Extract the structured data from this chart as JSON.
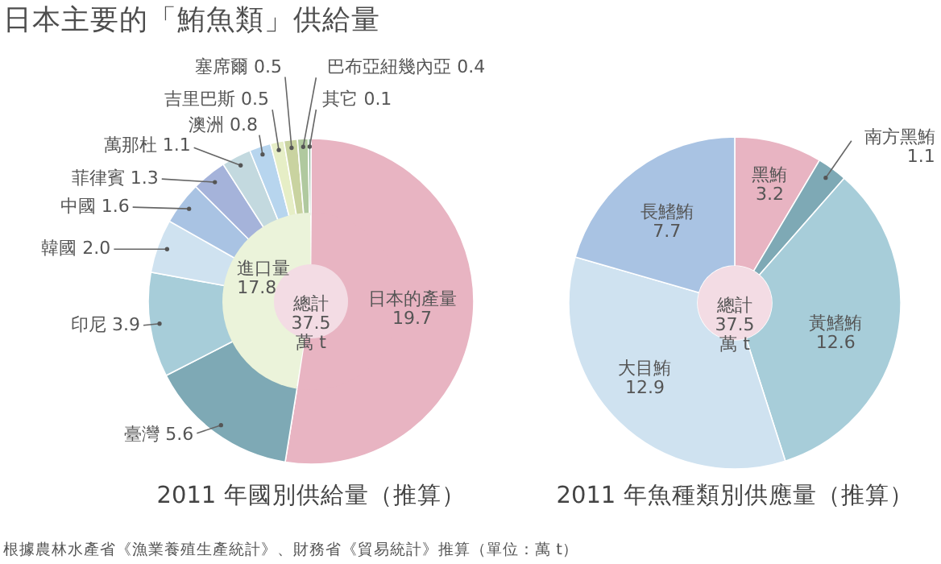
{
  "chart_data": [
    {
      "type": "pie",
      "title": "日本主要的「鮪魚類」供給量",
      "xlabel": "2011 年國別供給量（推算）",
      "categories": [
        "日本的產量",
        "臺灣",
        "印尼",
        "韓國",
        "中國",
        "菲律賓",
        "萬那杜",
        "澳洲",
        "吉里巴斯",
        "塞席爾",
        "巴布亞紐幾內亞",
        "其它",
        null
      ],
      "colors": [
        "#e8b4c2",
        "#7ea9b5",
        "#a7cdd9",
        "#cfe2f0",
        "#a9c3e3",
        "#a5b3da",
        "#c3d9df",
        "#b7d5ee",
        "#e6eec6",
        "#c9d3a0",
        "#b0c99f",
        "#8fb59c",
        "#ebf3da"
      ],
      "series": [
        {
          "values": [
            19.7,
            5.6,
            3.9,
            2.0,
            1.6,
            1.3,
            1.1,
            0.8,
            0.5,
            0.5,
            0.4,
            0.1,
            null
          ],
          "value_labels": [
            "19.7",
            "5.6",
            "3.9",
            "2.0",
            "1.6",
            "1.3",
            "1.1",
            "0.8",
            "0.5",
            "0.5",
            "0.4",
            "0.1",
            null
          ]
        },
        {
          "values": [
            19.7,
            null,
            null,
            null,
            null,
            null,
            null,
            null,
            null,
            null,
            null,
            null,
            17.8
          ],
          "value_labels": [
            null,
            null,
            null,
            null,
            null,
            null,
            null,
            null,
            null,
            null,
            null,
            null,
            "進口量\n17.8"
          ]
        }
      ],
      "annotations": [
        "總計\n37.5\n萬 t",
        "根據農林水產省《漁業養殖生產統計》、財務省《貿易統計》推算（單位：萬 t）"
      ]
    },
    {
      "type": "donut",
      "xlabel": "2011 年魚種類別供應量（推算）",
      "categories": [
        "黑鮪",
        "南方黑鮪",
        "黃鰭鮪",
        "大目鮪",
        "長鰭鮪"
      ],
      "colors": [
        "#e8b4c2",
        "#7ea9b5",
        "#a7cdd9",
        "#cfe2f0",
        "#a9c3e3"
      ],
      "series": [
        {
          "values": [
            3.2,
            1.1,
            12.6,
            12.9,
            7.7
          ],
          "value_labels": [
            "3.2",
            "1.1",
            "12.6",
            "12.9",
            "7.7"
          ]
        }
      ],
      "annotations": [
        "總計\n37.5\n萬 t"
      ]
    }
  ]
}
